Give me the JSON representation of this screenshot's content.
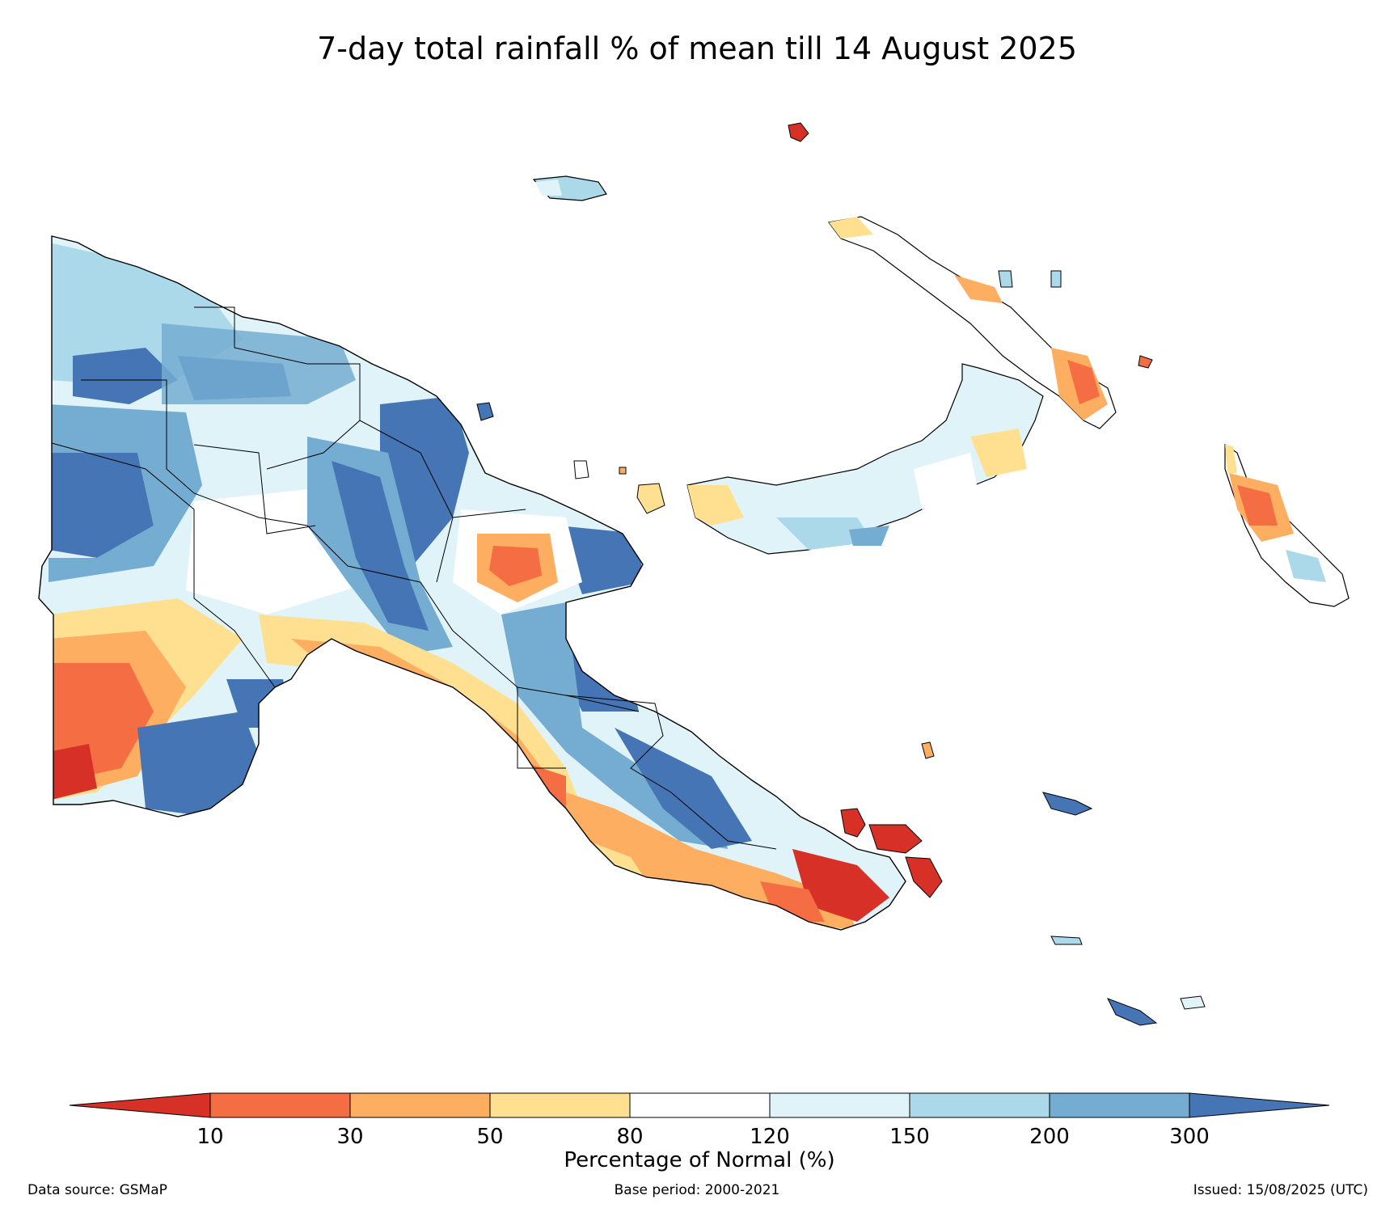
{
  "title": "7-day total rainfall % of mean till 14 August 2025",
  "colors": {
    "below_10": "#d73027",
    "c10_30": "#f46d43",
    "c30_50": "#fdae61",
    "c50_80": "#fee090",
    "c80_120": "#ffffff",
    "c120_150": "#e0f3f8",
    "c150_200": "#abd9e9",
    "c200_300": "#74add1",
    "above_300": "#4575b4",
    "border": "#000000"
  },
  "legend": {
    "label": "Percentage of Normal (%)",
    "ticks": [
      "10",
      "30",
      "50",
      "80",
      "120",
      "150",
      "200",
      "300"
    ]
  },
  "footer": {
    "source": "Data source: GSMaP",
    "base_period": "Base period: 2000-2021",
    "issued": "Issued: 15/08/2025 (UTC)"
  },
  "regions": [
    {
      "name": "mainland-png",
      "category": "mixed"
    },
    {
      "name": "western-south-dry-zone",
      "category": "c10_30"
    },
    {
      "name": "gulf-coast-dry-band",
      "category": "c30_50"
    },
    {
      "name": "papuan-peninsula",
      "category": "c30_50"
    },
    {
      "name": "milne-bay-islands",
      "category": "below_10"
    },
    {
      "name": "madang-dry-patch",
      "category": "c10_30"
    },
    {
      "name": "new-britain",
      "category": "c150_200"
    },
    {
      "name": "new-ireland",
      "category": "c10_30"
    },
    {
      "name": "bougainville",
      "category": "c10_30"
    },
    {
      "name": "manus",
      "category": "c150_200"
    },
    {
      "name": "louisiade-islands",
      "category": "c200_300"
    }
  ]
}
